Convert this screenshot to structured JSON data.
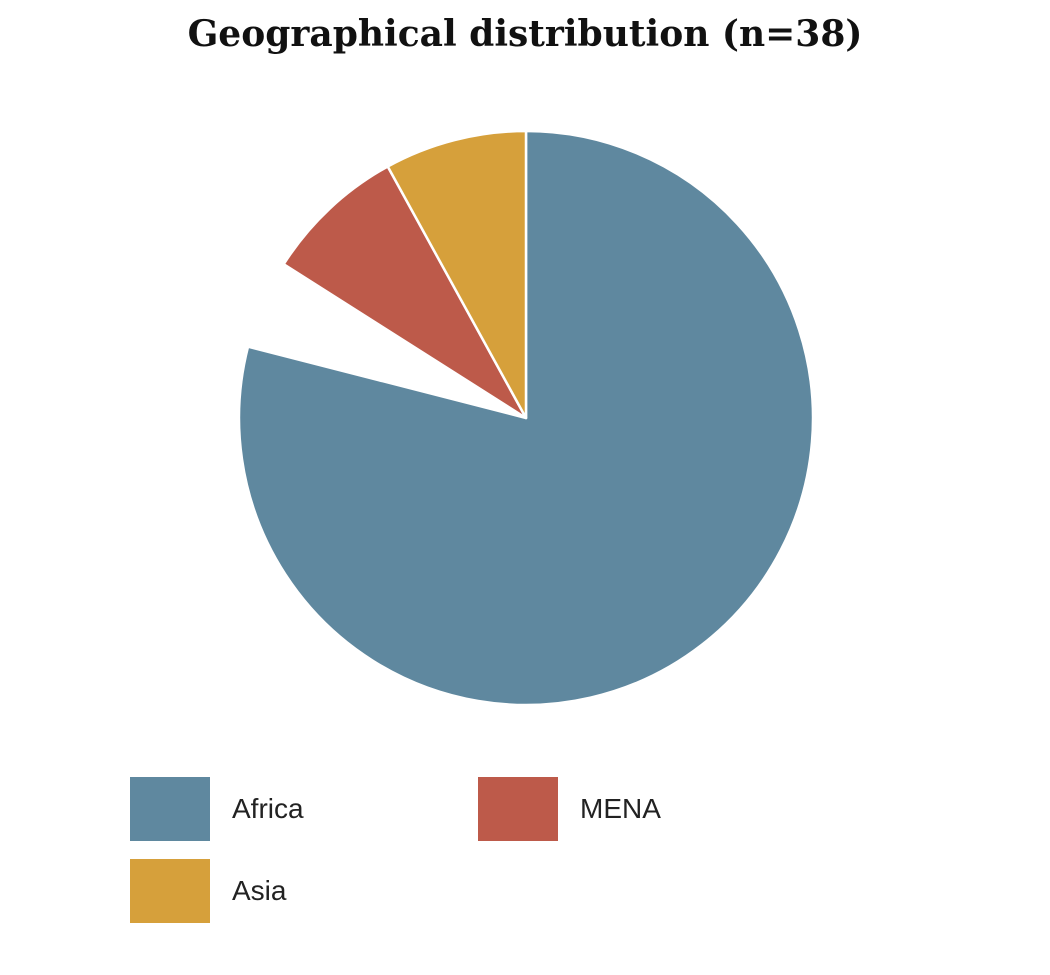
{
  "chart_data": {
    "type": "pie",
    "title": "Geographical distribution (n=38)",
    "n": 38,
    "slices": [
      {
        "name": "Africa",
        "value": 79,
        "color": "#5f889f"
      },
      {
        "name": "blank",
        "value": 5,
        "color": "#ffffff"
      },
      {
        "name": "MENA",
        "value": 8,
        "color": "#bd5a4a"
      },
      {
        "name": "Asia",
        "value": 8,
        "color": "#d6a03b"
      }
    ],
    "legend": {
      "placement": "bottom",
      "entries": [
        {
          "label": "Africa",
          "color": "#5f889f"
        },
        {
          "label": "MENA",
          "color": "#bd5a4a"
        },
        {
          "label": "Asia",
          "color": "#d6a03b"
        }
      ]
    }
  }
}
